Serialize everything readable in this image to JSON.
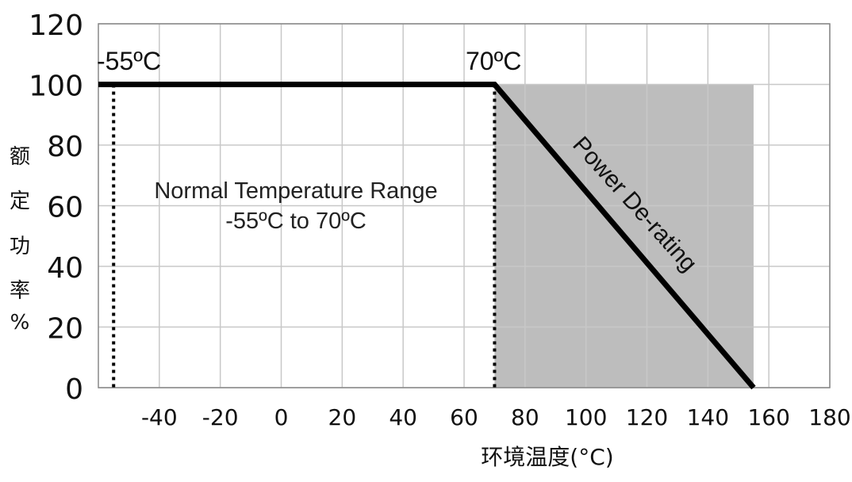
{
  "chart_data": {
    "type": "line",
    "xlabel": "环境温度(°C)",
    "ylabel": "额定功率%",
    "ylabel_chars": [
      "额",
      "定",
      "功",
      "率",
      "%"
    ],
    "xlim": [
      -60,
      180
    ],
    "ylim": [
      0,
      120
    ],
    "x_ticks": [
      -40,
      -20,
      0,
      20,
      40,
      60,
      80,
      100,
      120,
      140,
      160,
      180
    ],
    "y_ticks": [
      0,
      20,
      40,
      60,
      80,
      100,
      120
    ],
    "grid": true,
    "series": [
      {
        "x": [
          -60,
          70,
          155
        ],
        "y": [
          100,
          100,
          0
        ]
      }
    ],
    "reference_lines": [
      {
        "x": -55,
        "label": "-55ºC"
      },
      {
        "x": 70,
        "label": "70ºC"
      }
    ],
    "shaded_region": {
      "x": [
        70,
        155
      ],
      "y": [
        0,
        100
      ]
    },
    "annotations": {
      "normal_range_line1": "Normal Temperature Range",
      "normal_range_line2": "-55ºC to 70ºC",
      "derating": "Power De-rating"
    }
  }
}
